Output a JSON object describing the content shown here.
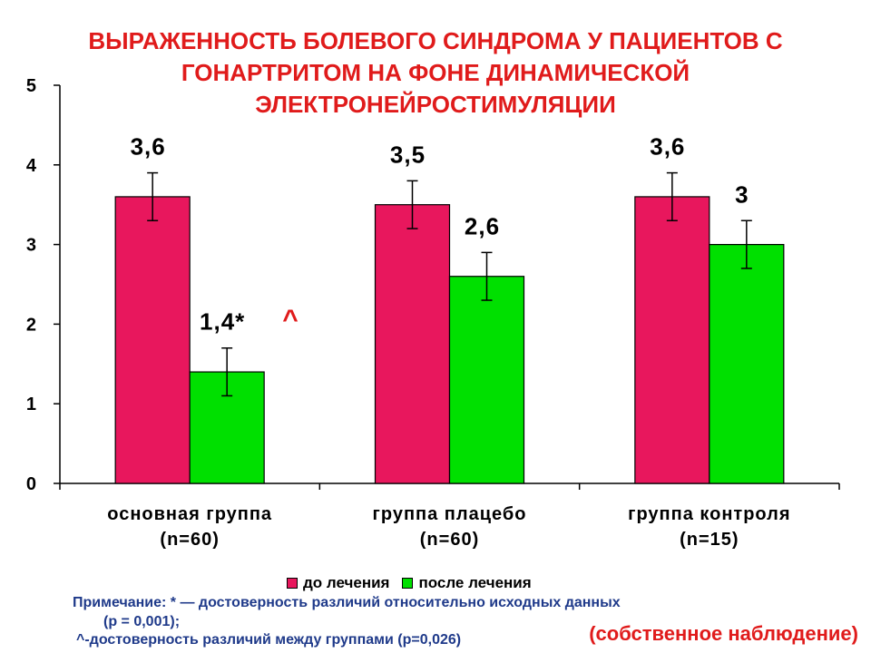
{
  "title_lines": [
    "ВЫРАЖЕННОСТЬ БОЛЕВОГО СИНДРОМА У ПАЦИЕНТОВ С",
    "ГОНАРТРИТОМ НА ФОНЕ ДИНАМИЧЕСКОЙ",
    "ЭЛЕКТРОНЕЙРОСТИМУЛЯЦИИ"
  ],
  "chart_data": {
    "type": "bar",
    "categories": [
      [
        "основная группа",
        "(n=60)"
      ],
      [
        "группа плацебо",
        "(n=60)"
      ],
      [
        "группа контроля",
        "(n=15)"
      ]
    ],
    "series": [
      {
        "name": "до лечения",
        "color": "#e8175d",
        "values": [
          3.6,
          3.5,
          3.6
        ],
        "errors": [
          0.3,
          0.3,
          0.3
        ],
        "labels": [
          "3,6",
          "3,5",
          "3,6"
        ]
      },
      {
        "name": "после лечения",
        "color": "#00e000",
        "values": [
          1.4,
          2.6,
          3.0
        ],
        "errors": [
          0.3,
          0.3,
          0.3
        ],
        "labels": [
          "1,4*",
          "2,6",
          "3"
        ]
      }
    ],
    "ylim": [
      0,
      5
    ],
    "yticks": [
      "0",
      "1",
      "2",
      "3",
      "4",
      "5"
    ],
    "annotation": "^",
    "legend_position": "bottom"
  },
  "notes": {
    "line1": "Примечание: * — достоверность различий относительно исходных данных",
    "line1b": "(р = 0,001);",
    "line2": "^-достоверность различий между группами (р=0,026)"
  },
  "source": "(собственное наблюдение)"
}
